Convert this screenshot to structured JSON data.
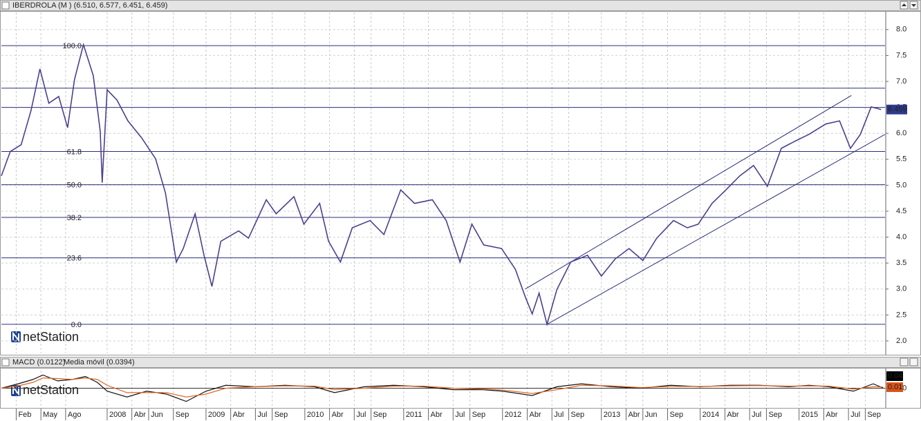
{
  "chart_data": [
    {
      "type": "line",
      "title": "IBERDROLA (M ) (6.510, 6.577, 6.451, 6.459)",
      "watermark": "netStation",
      "x": [
        2006.93,
        2007.02,
        2007.13,
        2007.23,
        2007.32,
        2007.41,
        2007.51,
        2007.6,
        2007.67,
        2007.76,
        2007.86,
        2007.93,
        2007.95,
        2008.0,
        2008.1,
        2008.21,
        2008.35,
        2008.49,
        2008.59,
        2008.7,
        2008.77,
        2008.89,
        2008.98,
        2009.06,
        2009.15,
        2009.33,
        2009.43,
        2009.61,
        2009.71,
        2009.89,
        2009.99,
        2010.15,
        2010.24,
        2010.36,
        2010.48,
        2010.66,
        2010.8,
        2010.97,
        2011.11,
        2011.29,
        2011.43,
        2011.57,
        2011.69,
        2011.81,
        2011.99,
        2012.13,
        2012.23,
        2012.3,
        2012.37,
        2012.45,
        2012.55,
        2012.69,
        2012.86,
        2013.0,
        2013.14,
        2013.28,
        2013.42,
        2013.56,
        2013.73,
        2013.87,
        2013.98,
        2014.12,
        2014.26,
        2014.4,
        2014.54,
        2014.68,
        2014.82,
        2014.96,
        2015.1,
        2015.27,
        2015.41,
        2015.52,
        2015.62,
        2015.73,
        2015.83
      ],
      "series": [
        {
          "name": "IBERDROLA",
          "color": "#4a3f8f",
          "values": [
            5.18,
            5.65,
            5.78,
            6.44,
            7.24,
            6.58,
            6.71,
            6.11,
            7.04,
            7.71,
            7.11,
            6.04,
            5.05,
            6.84,
            6.64,
            6.24,
            5.91,
            5.51,
            4.85,
            3.52,
            3.78,
            4.45,
            3.65,
            3.05,
            3.92,
            4.12,
            3.98,
            4.72,
            4.45,
            4.78,
            4.25,
            4.65,
            3.92,
            3.52,
            4.18,
            4.32,
            4.05,
            4.91,
            4.65,
            4.72,
            4.32,
            3.52,
            4.25,
            3.85,
            3.78,
            3.38,
            2.85,
            2.52,
            2.92,
            2.32,
            2.99,
            3.52,
            3.65,
            3.25,
            3.58,
            3.78,
            3.55,
            3.98,
            4.32,
            4.18,
            4.25,
            4.65,
            4.91,
            5.18,
            5.38,
            4.98,
            5.71,
            5.85,
            5.98,
            6.18,
            6.24,
            5.71,
            5.98,
            6.51,
            6.459
          ]
        }
      ],
      "last_price": {
        "value": 6.459,
        "label": "6.459",
        "color": "#2e3a8c"
      },
      "levels": [
        {
          "value": 7.69,
          "label": "100.0"
        },
        {
          "value": 5.65,
          "label": "61.8"
        },
        {
          "value": 5.01,
          "label": "50.0"
        },
        {
          "value": 4.38,
          "label": "38.2"
        },
        {
          "value": 3.6,
          "label": "23.6"
        },
        {
          "value": 2.32,
          "label": "0.0"
        }
      ],
      "hlines": [
        6.87,
        6.5
      ],
      "trendlines": [
        {
          "x": [
            2012.23,
            2015.53
          ],
          "y": [
            3.0,
            6.73
          ]
        },
        {
          "x": [
            2012.45,
            2015.87
          ],
          "y": [
            2.32,
            5.98
          ]
        }
      ],
      "xlim": [
        2006.93,
        2015.87
      ],
      "xticks": [
        {
          "value": 2007.08,
          "label": "Feb"
        },
        {
          "value": 2007.33,
          "label": "May"
        },
        {
          "value": 2007.58,
          "label": "Ago"
        },
        2008,
        {
          "value": 2008.25,
          "label": "Abr"
        },
        {
          "value": 2008.42,
          "label": "Jun"
        },
        {
          "value": 2008.67,
          "label": "Sep"
        },
        2009,
        {
          "value": 2009.25,
          "label": "Abr"
        },
        {
          "value": 2009.5,
          "label": "Jul"
        },
        {
          "value": 2009.67,
          "label": "Sep"
        },
        2010,
        {
          "value": 2010.25,
          "label": "Abr"
        },
        {
          "value": 2010.5,
          "label": "Jul"
        },
        {
          "value": 2010.67,
          "label": "Sep"
        },
        2011,
        {
          "value": 2011.25,
          "label": "Abr"
        },
        {
          "value": 2011.5,
          "label": "Jul"
        },
        {
          "value": 2011.67,
          "label": "Sep"
        },
        2012,
        {
          "value": 2012.25,
          "label": "Abr"
        },
        {
          "value": 2012.5,
          "label": "Jul"
        },
        {
          "value": 2012.67,
          "label": "Sep"
        },
        2013,
        {
          "value": 2013.25,
          "label": "Abr"
        },
        {
          "value": 2013.42,
          "label": "Jun"
        },
        {
          "value": 2013.67,
          "label": "Sep"
        },
        2014,
        {
          "value": 2014.25,
          "label": "Abr"
        },
        {
          "value": 2014.5,
          "label": "Jul"
        },
        {
          "value": 2014.67,
          "label": "Sep"
        },
        2015,
        {
          "value": 2015.25,
          "label": "Abr"
        },
        {
          "value": 2015.5,
          "label": "Jul"
        },
        {
          "value": 2015.67,
          "label": "Sep"
        }
      ],
      "ylim": [
        1.76,
        8.33
      ],
      "yticks": [
        {
          "value": 2,
          "label": "2.0"
        },
        {
          "value": 2.5,
          "label": "2.5"
        },
        {
          "value": 3,
          "label": "3.0"
        },
        {
          "value": 3.5,
          "label": "3.5"
        },
        {
          "value": 4,
          "label": "4.0"
        },
        {
          "value": 4.5,
          "label": "4.5"
        },
        {
          "value": 5,
          "label": "5.0"
        },
        {
          "value": 5.5,
          "label": "5.5"
        },
        {
          "value": 6,
          "label": "6.0"
        },
        {
          "value": 6.5,
          "label": "6.5"
        },
        {
          "value": 7,
          "label": "7.0"
        },
        {
          "value": 7.5,
          "label": "7.5"
        },
        {
          "value": 8,
          "label": "8.0"
        }
      ],
      "grid": true
    },
    {
      "type": "line",
      "title": "MACD (0.0122)",
      "subtitle": "Media móvil (0.0394)",
      "watermark": "netStation",
      "x": [
        2006.93,
        2007.1,
        2007.25,
        2007.35,
        2007.5,
        2007.65,
        2007.78,
        2007.9,
        2008.0,
        2008.2,
        2008.4,
        2008.6,
        2008.8,
        2009.0,
        2009.2,
        2009.5,
        2009.8,
        2010.1,
        2010.3,
        2010.6,
        2010.9,
        2011.2,
        2011.5,
        2011.8,
        2012.0,
        2012.3,
        2012.55,
        2012.8,
        2013.1,
        2013.4,
        2013.7,
        2014.0,
        2014.3,
        2014.6,
        2014.9,
        2015.1,
        2015.3,
        2015.55,
        2015.75,
        2015.85
      ],
      "series": [
        {
          "name": "MACD",
          "color": "#111111",
          "values": [
            0.0,
            0.15,
            0.3,
            0.45,
            0.25,
            0.3,
            0.4,
            0.2,
            -0.1,
            -0.3,
            -0.1,
            -0.2,
            -0.45,
            -0.1,
            0.1,
            0.05,
            0.1,
            0.05,
            -0.15,
            0.05,
            0.1,
            0.05,
            -0.05,
            -0.05,
            -0.1,
            -0.25,
            0.05,
            0.15,
            0.05,
            0.0,
            0.1,
            0.05,
            0.1,
            0.1,
            0.05,
            0.1,
            0.05,
            -0.1,
            0.15,
            0.01
          ]
        },
        {
          "name": "Media móvil",
          "color": "#e0661f",
          "values": [
            0.0,
            0.08,
            0.2,
            0.35,
            0.33,
            0.3,
            0.35,
            0.3,
            0.1,
            -0.15,
            -0.15,
            -0.15,
            -0.3,
            -0.2,
            0.0,
            0.05,
            0.08,
            0.07,
            -0.05,
            0.0,
            0.07,
            0.07,
            0.0,
            -0.03,
            -0.06,
            -0.18,
            -0.05,
            0.1,
            0.08,
            0.02,
            0.06,
            0.06,
            0.08,
            0.09,
            0.07,
            0.08,
            0.07,
            -0.03,
            0.05,
            0.04
          ]
        }
      ],
      "current": [
        {
          "value": 0.04,
          "label": "0.04",
          "color": "#000000"
        },
        {
          "value": 0.01,
          "label": "0.01",
          "color": "#d9541a"
        }
      ],
      "ylim": [
        -0.6,
        0.6
      ],
      "yticks": [
        {
          "value": 0,
          "label": "0.0"
        }
      ]
    }
  ]
}
